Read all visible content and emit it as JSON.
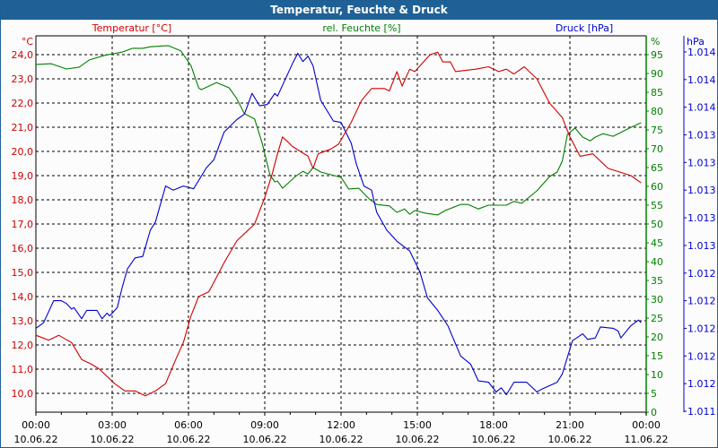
{
  "window": {
    "title": "Temperatur, Feuchte & Druck"
  },
  "chart_data": {
    "type": "line",
    "title": "Temperatur, Feuchte & Druck",
    "xlabel": "",
    "x_unit": "hours since 10.06.22 00:00",
    "xlim": [
      0,
      24
    ],
    "x_ticks": [
      {
        "h": 0,
        "time": "00:00",
        "date": "10.06.22"
      },
      {
        "h": 3,
        "time": "03:00",
        "date": "10.06.22"
      },
      {
        "h": 6,
        "time": "06:00",
        "date": "10.06.22"
      },
      {
        "h": 9,
        "time": "09:00",
        "date": "10.06.22"
      },
      {
        "h": 12,
        "time": "12:00",
        "date": "10.06.22"
      },
      {
        "h": 15,
        "time": "15:00",
        "date": "10.06.22"
      },
      {
        "h": 18,
        "time": "18:00",
        "date": "10.06.22"
      },
      {
        "h": 21,
        "time": "21:00",
        "date": "10.06.22"
      },
      {
        "h": 24,
        "time": "00:00",
        "date": "11.06.22"
      }
    ],
    "grid": true,
    "axes": {
      "temperature": {
        "unit": "°C",
        "ylim": [
          9.22,
          24.78
        ],
        "ticks": [
          "10,0",
          "11,0",
          "12,0",
          "13,0",
          "14,0",
          "15,0",
          "16,0",
          "17,0",
          "18,0",
          "19,0",
          "20,0",
          "21,0",
          "22,0",
          "23,0",
          "24,0"
        ],
        "tick_values": [
          10,
          11,
          12,
          13,
          14,
          15,
          16,
          17,
          18,
          19,
          20,
          21,
          22,
          23,
          24
        ]
      },
      "humidity": {
        "unit": "%",
        "ylim": [
          0,
          100
        ],
        "ticks": [
          "0",
          "5",
          "10",
          "15",
          "20",
          "25",
          "30",
          "35",
          "40",
          "45",
          "50",
          "55",
          "60",
          "65",
          "70",
          "75",
          "80",
          "85",
          "90",
          "95"
        ],
        "tick_values": [
          0,
          5,
          10,
          15,
          20,
          25,
          30,
          35,
          40,
          45,
          50,
          55,
          60,
          65,
          70,
          75,
          80,
          85,
          90,
          95
        ]
      },
      "pressure": {
        "unit": "hPa",
        "ylim": [
          1011.4,
          1014.0
        ],
        "ticks": [
          "1.011",
          "1.012",
          "1.012",
          "1.012",
          "1.012",
          "1.012",
          "1.013",
          "1.013",
          "1.013",
          "1.013",
          "1.013",
          "1.014",
          "1.014",
          "1.014"
        ],
        "tick_values": [
          1011.4,
          1011.6,
          1011.8,
          1012.0,
          1012.2,
          1012.4,
          1012.6,
          1012.8,
          1013.0,
          1013.2,
          1013.4,
          1013.6,
          1013.8,
          1014.0
        ]
      }
    },
    "series": [
      {
        "name": "Temperatur [°C]",
        "axis": "temperature",
        "color": "#d00000",
        "points": [
          [
            0,
            12.4
          ],
          [
            0.5,
            12.2
          ],
          [
            0.9,
            12.4
          ],
          [
            1.4,
            12.1
          ],
          [
            1.8,
            11.4
          ],
          [
            2.2,
            11.2
          ],
          [
            2.5,
            11.0
          ],
          [
            3.1,
            10.4
          ],
          [
            3.5,
            10.1
          ],
          [
            3.9,
            10.1
          ],
          [
            4.3,
            9.9
          ],
          [
            4.7,
            10.1
          ],
          [
            5.1,
            10.4
          ],
          [
            5.5,
            11.4
          ],
          [
            5.8,
            12.1
          ],
          [
            6.1,
            13.2
          ],
          [
            6.4,
            14.0
          ],
          [
            6.8,
            14.2
          ],
          [
            7.4,
            15.4
          ],
          [
            7.9,
            16.3
          ],
          [
            8.2,
            16.6
          ],
          [
            8.6,
            17.0
          ],
          [
            9.0,
            18.1
          ],
          [
            9.3,
            19.1
          ],
          [
            9.5,
            19.9
          ],
          [
            9.7,
            20.6
          ],
          [
            10.1,
            20.2
          ],
          [
            10.7,
            19.8
          ],
          [
            10.9,
            19.3
          ],
          [
            11.1,
            19.9
          ],
          [
            11.6,
            20.1
          ],
          [
            11.9,
            20.3
          ],
          [
            12.4,
            21.2
          ],
          [
            12.8,
            22.1
          ],
          [
            13.2,
            22.6
          ],
          [
            13.5,
            22.6
          ],
          [
            13.7,
            22.6
          ],
          [
            13.9,
            22.5
          ],
          [
            14.2,
            23.3
          ],
          [
            14.4,
            22.7
          ],
          [
            14.7,
            23.4
          ],
          [
            14.9,
            23.3
          ],
          [
            15.5,
            24.0
          ],
          [
            15.8,
            24.1
          ],
          [
            16.0,
            23.7
          ],
          [
            16.3,
            23.7
          ],
          [
            16.5,
            23.3
          ],
          [
            17.3,
            23.4
          ],
          [
            17.8,
            23.5
          ],
          [
            18.2,
            23.3
          ],
          [
            18.5,
            23.4
          ],
          [
            18.8,
            23.2
          ],
          [
            19.2,
            23.5
          ],
          [
            19.7,
            23.0
          ],
          [
            20.2,
            22.0
          ],
          [
            20.7,
            21.4
          ],
          [
            21.0,
            20.6
          ],
          [
            21.4,
            19.8
          ],
          [
            21.9,
            19.9
          ],
          [
            22.5,
            19.3
          ],
          [
            23.4,
            19.0
          ],
          [
            23.8,
            18.7
          ]
        ]
      },
      {
        "name": "rel. Feuchte [%]",
        "axis": "humidity",
        "color": "#008000",
        "points": [
          [
            0,
            92.4
          ],
          [
            0.6,
            92.6
          ],
          [
            1.2,
            91.2
          ],
          [
            1.7,
            91.7
          ],
          [
            2.1,
            93.6
          ],
          [
            2.7,
            94.8
          ],
          [
            3.4,
            95.7
          ],
          [
            3.8,
            96.7
          ],
          [
            4.2,
            96.7
          ],
          [
            4.5,
            97.1
          ],
          [
            5.2,
            97.4
          ],
          [
            5.7,
            96.0
          ],
          [
            6.1,
            92.1
          ],
          [
            6.4,
            86.2
          ],
          [
            6.5,
            85.7
          ],
          [
            7.1,
            87.6
          ],
          [
            7.6,
            86.2
          ],
          [
            7.9,
            83.3
          ],
          [
            8.2,
            79.3
          ],
          [
            8.6,
            77.9
          ],
          [
            8.9,
            71.4
          ],
          [
            9.2,
            63.1
          ],
          [
            9.4,
            61.2
          ],
          [
            9.5,
            61.4
          ],
          [
            9.7,
            59.5
          ],
          [
            10.2,
            62.6
          ],
          [
            10.5,
            64.0
          ],
          [
            10.7,
            63.3
          ],
          [
            10.9,
            65.0
          ],
          [
            11.2,
            63.8
          ],
          [
            11.6,
            63.1
          ],
          [
            12.0,
            62.4
          ],
          [
            12.3,
            59.3
          ],
          [
            12.7,
            59.5
          ],
          [
            13.1,
            56.7
          ],
          [
            13.4,
            55.2
          ],
          [
            13.9,
            54.8
          ],
          [
            14.2,
            53.1
          ],
          [
            14.5,
            54.0
          ],
          [
            14.7,
            52.6
          ],
          [
            14.9,
            53.6
          ],
          [
            15.3,
            52.9
          ],
          [
            15.8,
            52.4
          ],
          [
            16.1,
            53.6
          ],
          [
            16.7,
            55.2
          ],
          [
            17.0,
            55.2
          ],
          [
            17.4,
            54.0
          ],
          [
            17.8,
            55.0
          ],
          [
            18.5,
            55.0
          ],
          [
            18.8,
            56.0
          ],
          [
            19.1,
            55.5
          ],
          [
            19.7,
            58.8
          ],
          [
            20.2,
            62.6
          ],
          [
            20.5,
            63.8
          ],
          [
            20.7,
            66.7
          ],
          [
            20.9,
            73.8
          ],
          [
            21.2,
            75.5
          ],
          [
            21.5,
            73.1
          ],
          [
            21.8,
            72.1
          ],
          [
            22.0,
            73.1
          ],
          [
            22.3,
            74.0
          ],
          [
            22.7,
            73.3
          ],
          [
            23.4,
            75.7
          ],
          [
            23.8,
            76.9
          ]
        ]
      },
      {
        "name": "Druck [hPa]",
        "axis": "pressure",
        "color": "#0000d0",
        "points": [
          [
            0,
            1012.0
          ],
          [
            0.3,
            1012.04
          ],
          [
            0.7,
            1012.2
          ],
          [
            1.0,
            1012.2
          ],
          [
            1.2,
            1012.18
          ],
          [
            1.4,
            1012.14
          ],
          [
            1.5,
            1012.15
          ],
          [
            1.8,
            1012.07
          ],
          [
            2.0,
            1012.13
          ],
          [
            2.4,
            1012.13
          ],
          [
            2.6,
            1012.07
          ],
          [
            2.8,
            1012.11
          ],
          [
            2.9,
            1012.09
          ],
          [
            3.2,
            1012.15
          ],
          [
            3.4,
            1012.3
          ],
          [
            3.6,
            1012.43
          ],
          [
            3.9,
            1012.51
          ],
          [
            4.2,
            1012.52
          ],
          [
            4.5,
            1012.71
          ],
          [
            4.7,
            1012.77
          ],
          [
            5.1,
            1013.03
          ],
          [
            5.4,
            1013.0
          ],
          [
            5.8,
            1013.03
          ],
          [
            6.2,
            1013.01
          ],
          [
            6.7,
            1013.16
          ],
          [
            7.0,
            1013.22
          ],
          [
            7.4,
            1013.42
          ],
          [
            7.9,
            1013.51
          ],
          [
            8.2,
            1013.55
          ],
          [
            8.5,
            1013.7
          ],
          [
            8.8,
            1013.61
          ],
          [
            9.1,
            1013.62
          ],
          [
            9.4,
            1013.7
          ],
          [
            9.5,
            1013.68
          ],
          [
            10.1,
            1013.92
          ],
          [
            10.3,
            1013.99
          ],
          [
            10.5,
            1013.93
          ],
          [
            10.7,
            1013.97
          ],
          [
            10.9,
            1013.9
          ],
          [
            11.2,
            1013.65
          ],
          [
            11.7,
            1013.5
          ],
          [
            12.0,
            1013.49
          ],
          [
            12.4,
            1013.34
          ],
          [
            12.6,
            1013.19
          ],
          [
            12.9,
            1013.03
          ],
          [
            13.2,
            1013.0
          ],
          [
            13.4,
            1012.84
          ],
          [
            13.8,
            1012.71
          ],
          [
            14.2,
            1012.63
          ],
          [
            14.7,
            1012.56
          ],
          [
            15.1,
            1012.41
          ],
          [
            15.4,
            1012.22
          ],
          [
            15.8,
            1012.13
          ],
          [
            16.2,
            1012.02
          ],
          [
            16.7,
            1011.8
          ],
          [
            17.1,
            1011.74
          ],
          [
            17.4,
            1011.62
          ],
          [
            17.8,
            1011.61
          ],
          [
            18.1,
            1011.54
          ],
          [
            18.3,
            1011.57
          ],
          [
            18.5,
            1011.52
          ],
          [
            18.8,
            1011.61
          ],
          [
            19.3,
            1011.61
          ],
          [
            19.7,
            1011.54
          ],
          [
            19.9,
            1011.56
          ],
          [
            20.5,
            1011.61
          ],
          [
            20.7,
            1011.67
          ],
          [
            21.1,
            1011.91
          ],
          [
            21.5,
            1011.96
          ],
          [
            21.7,
            1011.92
          ],
          [
            22.0,
            1011.93
          ],
          [
            22.2,
            1012.01
          ],
          [
            22.7,
            1012.0
          ],
          [
            22.9,
            1011.98
          ],
          [
            23.0,
            1011.93
          ],
          [
            23.4,
            1012.02
          ],
          [
            23.7,
            1012.06
          ],
          [
            23.8,
            1012.04
          ]
        ]
      }
    ],
    "legend": {
      "placement": "top",
      "labels": [
        "Temperatur [°C]",
        "rel. Feuchte [%]",
        "Druck [hPa]"
      ]
    }
  },
  "colors": {
    "titlebar": "#1f6196",
    "temperature": "#d00000",
    "humidity": "#008000",
    "pressure": "#0000d0"
  }
}
